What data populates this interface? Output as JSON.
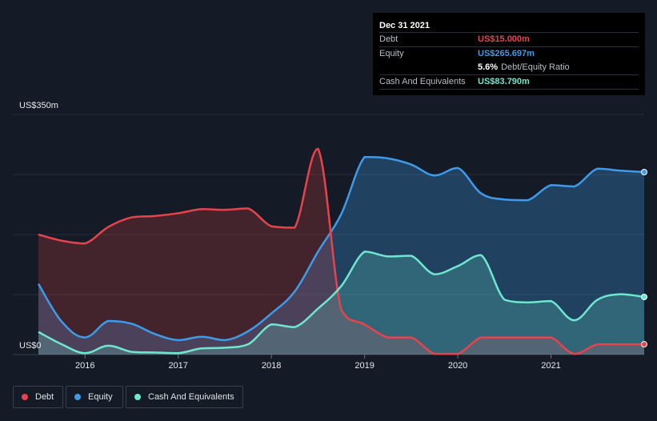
{
  "tooltip": {
    "date": "Dec 31 2021",
    "rows": [
      {
        "label": "Debt",
        "value": "US$15.000m",
        "color": "#e8434b"
      },
      {
        "label": "Equity",
        "value": "US$265.697m",
        "color": "#3d9be9"
      },
      {
        "label": "",
        "value": "5.6%",
        "suffix": "Debt/Equity Ratio",
        "color": "#ffffff"
      },
      {
        "label": "Cash And Equivalents",
        "value": "US$83.790m",
        "color": "#6ee7cf"
      }
    ]
  },
  "legend": [
    {
      "label": "Debt",
      "color": "#e8434b"
    },
    {
      "label": "Equity",
      "color": "#3d9be9"
    },
    {
      "label": "Cash And Equivalents",
      "color": "#6ee7cf"
    }
  ],
  "chart_data": {
    "type": "area",
    "title": "",
    "y_label_top": "US$350m",
    "y_label_bottom": "US$0",
    "ylim": [
      0,
      350
    ],
    "xlim": [
      2015.5,
      2022.0
    ],
    "x_ticks": [
      "2016",
      "2017",
      "2018",
      "2019",
      "2020",
      "2021"
    ],
    "series": [
      {
        "name": "Debt",
        "color": "#e8434b",
        "points": [
          [
            2015.5,
            175
          ],
          [
            2015.75,
            166
          ],
          [
            2016.0,
            162
          ],
          [
            2016.25,
            186
          ],
          [
            2016.5,
            200
          ],
          [
            2016.75,
            202
          ],
          [
            2017.0,
            206
          ],
          [
            2017.25,
            212
          ],
          [
            2017.5,
            211
          ],
          [
            2017.75,
            213
          ],
          [
            2018.0,
            187
          ],
          [
            2018.25,
            185
          ],
          [
            2018.5,
            300
          ],
          [
            2018.75,
            65
          ],
          [
            2019.0,
            44
          ],
          [
            2019.25,
            25
          ],
          [
            2019.5,
            25
          ],
          [
            2019.75,
            1
          ],
          [
            2020.0,
            1
          ],
          [
            2020.25,
            25
          ],
          [
            2020.5,
            25
          ],
          [
            2020.75,
            25
          ],
          [
            2021.0,
            25
          ],
          [
            2021.25,
            1
          ],
          [
            2021.5,
            15
          ],
          [
            2021.75,
            15
          ],
          [
            2022.0,
            15
          ]
        ]
      },
      {
        "name": "Equity",
        "color": "#3d9be9",
        "points": [
          [
            2015.5,
            103
          ],
          [
            2015.75,
            48
          ],
          [
            2016.0,
            25
          ],
          [
            2016.25,
            49
          ],
          [
            2016.5,
            45
          ],
          [
            2016.75,
            30
          ],
          [
            2017.0,
            21
          ],
          [
            2017.25,
            26
          ],
          [
            2017.5,
            21
          ],
          [
            2017.75,
            34
          ],
          [
            2018.0,
            60
          ],
          [
            2018.25,
            92
          ],
          [
            2018.5,
            150
          ],
          [
            2018.75,
            205
          ],
          [
            2019.0,
            288
          ],
          [
            2019.25,
            286
          ],
          [
            2019.5,
            277
          ],
          [
            2019.75,
            261
          ],
          [
            2020.0,
            272
          ],
          [
            2020.25,
            235
          ],
          [
            2020.5,
            226
          ],
          [
            2020.75,
            225
          ],
          [
            2021.0,
            247
          ],
          [
            2021.25,
            245
          ],
          [
            2021.5,
            271
          ],
          [
            2021.75,
            268
          ],
          [
            2022.0,
            266
          ]
        ]
      },
      {
        "name": "Cash And Equivalents",
        "color": "#6ee7cf",
        "points": [
          [
            2015.5,
            33
          ],
          [
            2015.75,
            15
          ],
          [
            2016.0,
            2
          ],
          [
            2016.25,
            13
          ],
          [
            2016.5,
            4
          ],
          [
            2016.75,
            3
          ],
          [
            2017.0,
            2
          ],
          [
            2017.25,
            9
          ],
          [
            2017.5,
            10
          ],
          [
            2017.75,
            15
          ],
          [
            2018.0,
            44
          ],
          [
            2018.25,
            40
          ],
          [
            2018.5,
            67
          ],
          [
            2018.75,
            100
          ],
          [
            2019.0,
            150
          ],
          [
            2019.25,
            143
          ],
          [
            2019.5,
            144
          ],
          [
            2019.75,
            117
          ],
          [
            2020.0,
            129
          ],
          [
            2020.25,
            145
          ],
          [
            2020.5,
            80
          ],
          [
            2020.75,
            76
          ],
          [
            2021.0,
            78
          ],
          [
            2021.25,
            50
          ],
          [
            2021.5,
            80
          ],
          [
            2021.75,
            88
          ],
          [
            2022.0,
            84
          ]
        ]
      }
    ]
  }
}
